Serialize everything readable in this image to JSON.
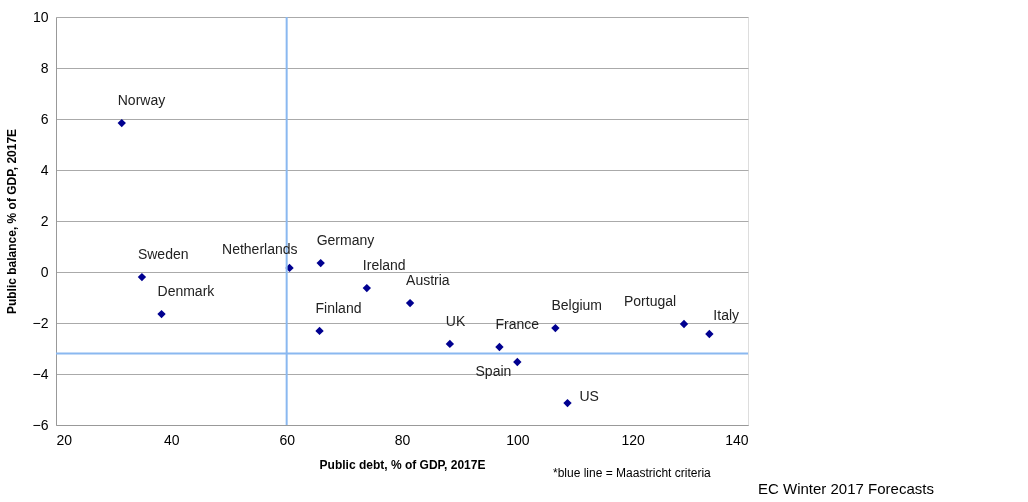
{
  "chart_data": {
    "type": "scatter",
    "xlabel": "Public debt, % of GDP, 2017E",
    "ylabel": "Public balance, % of GDP, 2017E",
    "x": [
      31.4,
      34.9,
      38.3,
      60.5,
      65.9,
      73.9,
      81.4,
      65.7,
      88.3,
      96.9,
      100.0,
      106.6,
      108.7,
      128.9,
      133.3
    ],
    "series": [
      {
        "color": "#000090",
        "values": [
          5.84,
          -0.2,
          -1.65,
          0.16,
          0.35,
          -0.63,
          -1.22,
          -2.31,
          -2.82,
          -2.94,
          -3.53,
          -2.2,
          -5.14,
          -2.04,
          -2.43
        ]
      }
    ],
    "marker": "diamond",
    "grid": "y",
    "xlim": [
      20,
      140
    ],
    "xticks": [
      20,
      40,
      60,
      80,
      100,
      120,
      140
    ],
    "ylim": [
      -6,
      10
    ],
    "yticks": [
      -6,
      -4,
      -2,
      0,
      2,
      4,
      6,
      8,
      10
    ],
    "ref_lines": [
      {
        "axis": "x",
        "value": 60,
        "color": "#8ab8f0"
      },
      {
        "axis": "y",
        "value": -3.2,
        "color": "#8ab8f0"
      }
    ],
    "annotations": [
      {
        "text": "Norway",
        "x": 31.4,
        "y": 5.84
      },
      {
        "text": "Sweden",
        "x": 34.9,
        "y": -0.2
      },
      {
        "text": "Denmark",
        "x": 38.3,
        "y": -1.65
      },
      {
        "text": "Netherlands",
        "x": 60.5,
        "y": 0.16
      },
      {
        "text": "Germany",
        "x": 65.9,
        "y": 0.35
      },
      {
        "text": "Ireland",
        "x": 73.9,
        "y": -0.63
      },
      {
        "text": "Austria",
        "x": 81.4,
        "y": -1.22
      },
      {
        "text": "Finland",
        "x": 65.7,
        "y": -2.31
      },
      {
        "text": "UK",
        "x": 88.3,
        "y": -2.82
      },
      {
        "text": "France",
        "x": 96.9,
        "y": -2.94
      },
      {
        "text": "Spain",
        "x": 100.0,
        "y": -3.53
      },
      {
        "text": "Belgium",
        "x": 106.6,
        "y": -2.2
      },
      {
        "text": "US",
        "x": 108.7,
        "y": -5.14
      },
      {
        "text": "Portugal",
        "x": 128.9,
        "y": -2.04
      },
      {
        "text": "Italy",
        "x": 133.3,
        "y": -2.43
      },
      "*blue line = Maastricht criteria",
      "EC Winter 2017 Forecasts"
    ]
  }
}
